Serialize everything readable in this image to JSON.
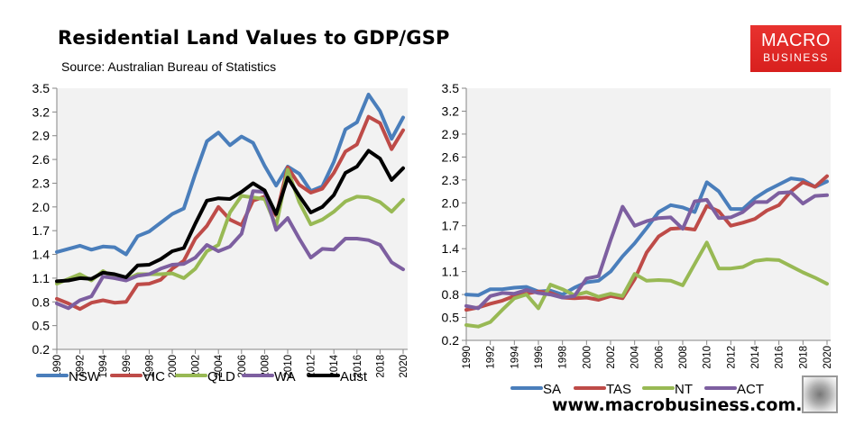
{
  "header": {
    "title": "Residential Land Values to GDP/GSP",
    "source": "Source: Australian Bureau of Statistics",
    "logo_line1": "MACRO",
    "logo_line2": "BUSINESS",
    "url": "www.macrobusiness.com.au",
    "wolf_icon": "wolf-logo-icon"
  },
  "chart_data": [
    {
      "type": "line",
      "title": "Residential Land Values to GDP/GSP",
      "xlabel": "",
      "ylabel": "",
      "ylim": [
        0.2,
        3.5
      ],
      "yticks": [
        "3.5",
        "3.2",
        "2.9",
        "2.6",
        "2.3",
        "2.0",
        "1.7",
        "1.4",
        "1.1",
        "0.8",
        "0.5",
        "0.2"
      ],
      "xlim": [
        1990,
        2020
      ],
      "xticks": [
        "1990",
        "1992",
        "1994",
        "1996",
        "1998",
        "2000",
        "2002",
        "2004",
        "2006",
        "2008",
        "2010",
        "2012",
        "2014",
        "2016",
        "2018",
        "2020"
      ],
      "legend_position": "bottom",
      "x": [
        1990,
        1991,
        1992,
        1993,
        1994,
        1995,
        1996,
        1997,
        1998,
        1999,
        2000,
        2001,
        2002,
        2003,
        2004,
        2005,
        2006,
        2007,
        2008,
        2009,
        2010,
        2011,
        2012,
        2013,
        2014,
        2015,
        2016,
        2017,
        2018,
        2019,
        2020
      ],
      "series": [
        {
          "name": "NSW",
          "color": "#4a7ebb",
          "values": [
            1.43,
            1.47,
            1.51,
            1.46,
            1.5,
            1.49,
            1.4,
            1.63,
            1.69,
            1.8,
            1.91,
            1.98,
            2.42,
            2.83,
            2.94,
            2.78,
            2.89,
            2.81,
            2.52,
            2.27,
            2.51,
            2.42,
            2.2,
            2.26,
            2.57,
            2.98,
            3.07,
            3.42,
            3.21,
            2.86,
            3.13
          ]
        },
        {
          "name": "VIC",
          "color": "#be4b48",
          "values": [
            0.84,
            0.78,
            0.71,
            0.79,
            0.82,
            0.79,
            0.8,
            1.02,
            1.03,
            1.08,
            1.22,
            1.32,
            1.6,
            1.76,
            2.0,
            1.84,
            1.77,
            2.08,
            2.13,
            1.89,
            2.5,
            2.28,
            2.18,
            2.23,
            2.43,
            2.7,
            2.79,
            3.14,
            3.06,
            2.73,
            2.97
          ]
        },
        {
          "name": "QLD",
          "color": "#98b954",
          "values": [
            1.03,
            1.09,
            1.15,
            1.07,
            1.19,
            1.1,
            1.08,
            1.15,
            1.15,
            1.15,
            1.16,
            1.1,
            1.22,
            1.44,
            1.52,
            1.93,
            2.14,
            2.12,
            2.1,
            1.76,
            2.47,
            2.06,
            1.78,
            1.84,
            1.94,
            2.07,
            2.13,
            2.12,
            2.06,
            1.94,
            2.09
          ]
        },
        {
          "name": "WA",
          "color": "#7d5fa0",
          "values": [
            0.78,
            0.72,
            0.82,
            0.87,
            1.12,
            1.1,
            1.07,
            1.13,
            1.15,
            1.22,
            1.27,
            1.28,
            1.36,
            1.52,
            1.44,
            1.5,
            1.66,
            2.2,
            2.19,
            1.71,
            1.86,
            1.6,
            1.36,
            1.47,
            1.46,
            1.6,
            1.6,
            1.58,
            1.52,
            1.3,
            1.21
          ]
        },
        {
          "name": "Aust",
          "color": "#000000",
          "values": [
            1.06,
            1.07,
            1.1,
            1.09,
            1.17,
            1.15,
            1.11,
            1.26,
            1.27,
            1.34,
            1.44,
            1.48,
            1.79,
            2.08,
            2.11,
            2.1,
            2.19,
            2.3,
            2.21,
            1.91,
            2.37,
            2.14,
            1.93,
            2.0,
            2.15,
            2.43,
            2.51,
            2.71,
            2.61,
            2.34,
            2.49
          ]
        }
      ]
    },
    {
      "type": "line",
      "title": "",
      "xlabel": "",
      "ylabel": "",
      "ylim": [
        0.2,
        3.5
      ],
      "yticks": [
        "3.5",
        "3.2",
        "2.9",
        "2.6",
        "2.3",
        "2.0",
        "1.7",
        "1.4",
        "1.1",
        "0.8",
        "0.5",
        "0.2"
      ],
      "xlim": [
        1990,
        2020
      ],
      "xticks": [
        "1990",
        "1992",
        "1994",
        "1996",
        "1998",
        "2000",
        "2002",
        "2004",
        "2006",
        "2008",
        "2010",
        "2012",
        "2014",
        "2016",
        "2018",
        "2020"
      ],
      "legend_position": "bottom",
      "x": [
        1990,
        1991,
        1992,
        1993,
        1994,
        1995,
        1996,
        1997,
        1998,
        1999,
        2000,
        2001,
        2002,
        2003,
        2004,
        2005,
        2006,
        2007,
        2008,
        2009,
        2010,
        2011,
        2012,
        2013,
        2014,
        2015,
        2016,
        2017,
        2018,
        2019,
        2020
      ],
      "series": [
        {
          "name": "SA",
          "color": "#4a7ebb",
          "values": [
            0.8,
            0.79,
            0.87,
            0.87,
            0.89,
            0.9,
            0.84,
            0.85,
            0.8,
            0.89,
            0.96,
            0.98,
            1.1,
            1.3,
            1.47,
            1.67,
            1.88,
            1.97,
            1.94,
            1.88,
            2.27,
            2.15,
            1.92,
            1.92,
            2.06,
            2.16,
            2.24,
            2.32,
            2.3,
            2.21,
            2.28
          ]
        },
        {
          "name": "TAS",
          "color": "#be4b48",
          "values": [
            0.6,
            0.63,
            0.68,
            0.72,
            0.78,
            0.81,
            0.84,
            0.82,
            0.76,
            0.75,
            0.76,
            0.73,
            0.78,
            0.75,
            1.0,
            1.35,
            1.56,
            1.66,
            1.67,
            1.65,
            1.96,
            1.89,
            1.7,
            1.74,
            1.79,
            1.9,
            1.97,
            2.15,
            2.27,
            2.21,
            2.35
          ]
        },
        {
          "name": "NT",
          "color": "#98b954",
          "values": [
            0.4,
            0.38,
            0.44,
            0.6,
            0.75,
            0.8,
            0.62,
            0.93,
            0.87,
            0.79,
            0.83,
            0.77,
            0.81,
            0.78,
            1.07,
            0.98,
            0.99,
            0.98,
            0.92,
            1.2,
            1.48,
            1.14,
            1.14,
            1.16,
            1.24,
            1.26,
            1.25,
            1.17,
            1.09,
            1.02,
            0.94
          ]
        },
        {
          "name": "ACT",
          "color": "#7d5fa0",
          "values": [
            0.65,
            0.62,
            0.78,
            0.82,
            0.81,
            0.86,
            0.82,
            0.8,
            0.76,
            0.78,
            1.01,
            1.04,
            1.51,
            1.95,
            1.7,
            1.76,
            1.8,
            1.81,
            1.66,
            2.02,
            2.04,
            1.8,
            1.81,
            1.88,
            2.01,
            2.01,
            2.13,
            2.14,
            1.99,
            2.09,
            2.1
          ]
        }
      ]
    }
  ]
}
